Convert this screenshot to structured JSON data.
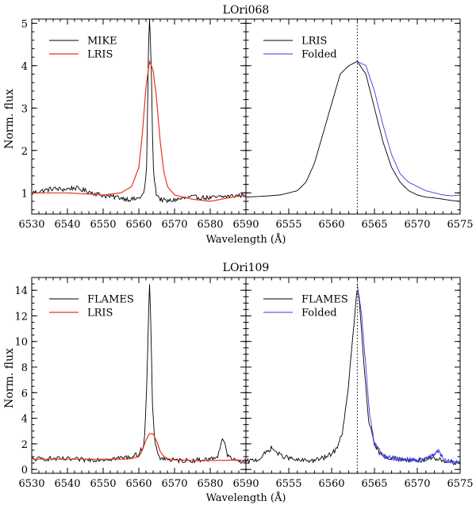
{
  "colors": {
    "black": "#000000",
    "red": "#e8341c",
    "blue": "#3a3ae0"
  },
  "figure": {
    "xlabel": "Wavelength (Å)",
    "ylabel": "Norm. flux"
  },
  "chart_data": [
    {
      "type": "line",
      "title": "LOri068",
      "panel": "top-left",
      "xlim": [
        6530,
        6590
      ],
      "ylim": [
        0.5,
        5.1
      ],
      "xticks": [
        6530,
        6540,
        6550,
        6560,
        6570,
        6580,
        6590
      ],
      "xtick_labels": [
        "6530",
        "6540",
        "6550",
        "6560",
        "6570",
        "6580",
        "6590"
      ],
      "yticks": [
        1,
        2,
        3,
        4,
        5
      ],
      "ytick_labels": [
        "1",
        "2",
        "3",
        "4",
        "5"
      ],
      "legend": "top-left",
      "series": [
        {
          "name": "MIKE",
          "color": "#000000",
          "style": "noisy",
          "x": [
            6530,
            6533,
            6536,
            6539,
            6542,
            6545,
            6548,
            6551,
            6554,
            6557,
            6559,
            6560.5,
            6561.5,
            6562.2,
            6562.7,
            6563.0,
            6563.4,
            6564.0,
            6564.8,
            6566,
            6568,
            6571,
            6575,
            6580,
            6585,
            6590
          ],
          "y": [
            1.0,
            1.05,
            1.1,
            1.08,
            1.12,
            1.05,
            0.98,
            0.92,
            0.9,
            0.85,
            0.85,
            0.9,
            1.0,
            1.6,
            4.4,
            5.1,
            4.3,
            1.6,
            1.0,
            0.85,
            0.8,
            0.85,
            0.9,
            0.88,
            0.92,
            0.95
          ]
        },
        {
          "name": "LRIS",
          "color": "#e8341c",
          "style": "smooth",
          "x": [
            6530,
            6540,
            6550,
            6555,
            6558,
            6560,
            6561,
            6562,
            6563,
            6564,
            6565,
            6566,
            6567,
            6568,
            6570,
            6575,
            6580,
            6585,
            6590
          ],
          "y": [
            1.0,
            1.0,
            0.95,
            1.0,
            1.15,
            1.6,
            2.4,
            3.5,
            4.1,
            3.9,
            3.2,
            2.2,
            1.5,
            1.15,
            0.95,
            0.85,
            0.8,
            0.88,
            0.95
          ]
        }
      ]
    },
    {
      "type": "line",
      "title": "",
      "panel": "top-right",
      "xlim": [
        6550,
        6575
      ],
      "ylim": [
        0.5,
        5.1
      ],
      "xticks": [
        6555,
        6560,
        6565,
        6570,
        6575
      ],
      "xtick_labels": [
        "6555",
        "6560",
        "6565",
        "6570",
        "6575"
      ],
      "vline": 6563,
      "legend": "top-left",
      "series": [
        {
          "name": "LRIS",
          "color": "#000000",
          "style": "smooth",
          "x": [
            6550,
            6552,
            6554,
            6556,
            6557,
            6558,
            6559,
            6560,
            6561,
            6562,
            6563,
            6564,
            6565,
            6566,
            6567,
            6568,
            6569,
            6570,
            6571,
            6572,
            6573,
            6574,
            6575
          ],
          "y": [
            0.9,
            0.92,
            0.95,
            1.05,
            1.25,
            1.7,
            2.4,
            3.1,
            3.8,
            4.0,
            4.1,
            3.8,
            3.0,
            2.2,
            1.6,
            1.25,
            1.05,
            0.95,
            0.9,
            0.88,
            0.85,
            0.82,
            0.8
          ]
        },
        {
          "name": "Folded",
          "color": "#3a3ae0",
          "style": "smooth",
          "x": [
            6563,
            6564,
            6565,
            6566,
            6567,
            6568,
            6569,
            6570,
            6571,
            6572,
            6573,
            6574,
            6575
          ],
          "y": [
            4.1,
            4.0,
            3.4,
            2.6,
            1.9,
            1.45,
            1.25,
            1.15,
            1.05,
            1.0,
            0.95,
            0.93,
            0.95
          ]
        }
      ]
    },
    {
      "type": "line",
      "title": "LOri109",
      "panel": "bottom-left",
      "xlim": [
        6530,
        6590
      ],
      "ylim": [
        -0.3,
        15
      ],
      "xticks": [
        6530,
        6540,
        6550,
        6560,
        6570,
        6580,
        6590
      ],
      "xtick_labels": [
        "6530",
        "6540",
        "6550",
        "6560",
        "6570",
        "6580",
        "6590"
      ],
      "yticks": [
        0,
        2,
        4,
        6,
        8,
        10,
        12,
        14
      ],
      "ytick_labels": [
        "0",
        "2",
        "4",
        "6",
        "8",
        "10",
        "12",
        "14"
      ],
      "legend": "top-left",
      "series": [
        {
          "name": "FLAMES",
          "color": "#000000",
          "style": "noisy",
          "x": [
            6530,
            6535,
            6540,
            6545,
            6550,
            6555,
            6558,
            6560,
            6561.5,
            6562.3,
            6562.8,
            6563.0,
            6563.3,
            6563.8,
            6564.6,
            6566,
            6570,
            6575,
            6580,
            6582,
            6583.5,
            6585,
            6587,
            6590
          ],
          "y": [
            0.8,
            0.85,
            0.8,
            0.75,
            0.8,
            0.9,
            1.0,
            1.2,
            2.0,
            7.0,
            13.0,
            14.5,
            12.0,
            5.0,
            1.8,
            0.9,
            0.7,
            0.7,
            0.8,
            1.0,
            2.5,
            1.0,
            0.7,
            0.6
          ]
        },
        {
          "name": "LRIS",
          "color": "#e8341c",
          "style": "smooth",
          "x": [
            6530,
            6540,
            6550,
            6555,
            6558,
            6560,
            6561,
            6562,
            6563,
            6564,
            6565,
            6566,
            6567,
            6568,
            6570,
            6575,
            6580,
            6585,
            6590
          ],
          "y": [
            0.8,
            0.8,
            0.8,
            0.8,
            0.85,
            1.0,
            1.5,
            2.3,
            2.8,
            2.8,
            2.2,
            1.4,
            1.0,
            0.85,
            0.75,
            0.7,
            0.7,
            0.72,
            0.72
          ]
        }
      ]
    },
    {
      "type": "line",
      "title": "",
      "panel": "bottom-right",
      "xlim": [
        6550,
        6575
      ],
      "ylim": [
        -0.3,
        15
      ],
      "xticks": [
        6555,
        6560,
        6565,
        6570,
        6575
      ],
      "xtick_labels": [
        "6555",
        "6560",
        "6565",
        "6570",
        "6575"
      ],
      "vline": 6563,
      "legend": "top-left",
      "series": [
        {
          "name": "FLAMES",
          "color": "#000000",
          "style": "noisy",
          "x": [
            6550,
            6551.5,
            6553,
            6554,
            6556,
            6558,
            6559.5,
            6560.5,
            6561.3,
            6561.8,
            6562.3,
            6562.8,
            6563.0,
            6563.3,
            6563.8,
            6564.3,
            6565,
            6566,
            6568,
            6570,
            6572,
            6574,
            6575
          ],
          "y": [
            0.6,
            0.8,
            1.7,
            1.1,
            0.7,
            0.7,
            1.0,
            1.5,
            3.0,
            5.5,
            9.0,
            12.8,
            14.4,
            12.5,
            8.0,
            4.0,
            1.8,
            1.0,
            0.8,
            0.7,
            0.8,
            0.6,
            0.5
          ]
        },
        {
          "name": "Folded",
          "color": "#3a3ae0",
          "style": "noisy",
          "x": [
            6563.0,
            6563.4,
            6563.9,
            6564.4,
            6565,
            6566,
            6567,
            6568,
            6569,
            6570,
            6571,
            6572,
            6572.5,
            6573,
            6574,
            6575
          ],
          "y": [
            14.4,
            12.8,
            8.8,
            4.5,
            2.0,
            1.1,
            0.9,
            0.8,
            0.8,
            0.7,
            0.8,
            1.2,
            1.5,
            0.8,
            0.6,
            0.5
          ]
        }
      ]
    }
  ]
}
